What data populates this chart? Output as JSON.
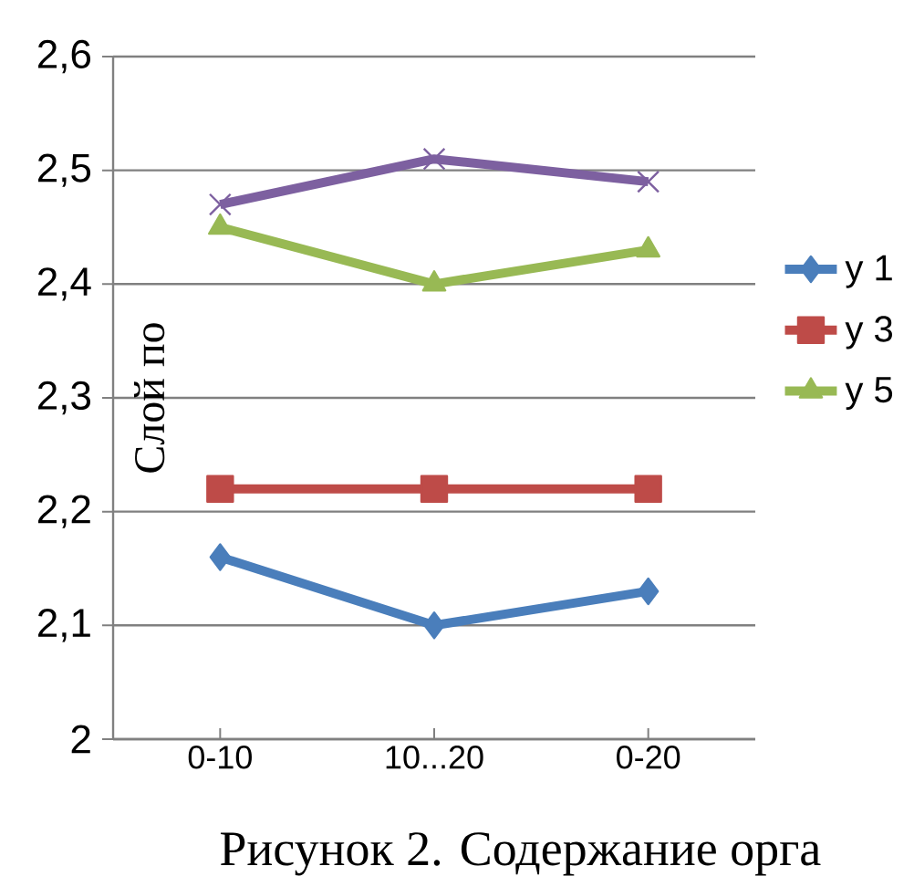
{
  "chart_data": {
    "type": "line",
    "ylabel": "Слой по",
    "categories": [
      "0-10",
      "10...20",
      "0-20"
    ],
    "series": [
      {
        "name": "у 1",
        "color": "#4a7ebb",
        "marker": "diamond",
        "values": [
          2.16,
          2.1,
          2.13
        ]
      },
      {
        "name": "у 3",
        "color": "#be4b48",
        "marker": "square",
        "values": [
          2.22,
          2.22,
          2.22
        ]
      },
      {
        "name": "у 5",
        "color": "#98b954",
        "marker": "triangle",
        "values": [
          2.45,
          2.4,
          2.43
        ]
      },
      {
        "color": "#7d60a0",
        "marker": "cross",
        "values": [
          2.47,
          2.51,
          2.49
        ]
      }
    ],
    "ylim": [
      2,
      2.6
    ],
    "yticks": [
      {
        "value": 2,
        "label": "2"
      },
      {
        "value": 2.1,
        "label": "2,1"
      },
      {
        "value": 2.2,
        "label": "2,2"
      },
      {
        "value": 2.3,
        "label": "2,3"
      },
      {
        "value": 2.4,
        "label": "2,4"
      },
      {
        "value": 2.5,
        "label": "2,5"
      },
      {
        "value": 2.6,
        "label": "2,6"
      }
    ],
    "grid": "y",
    "legend": "right",
    "line_style": "solid",
    "annotations": [
      "Рисунок 2. Содержание орга"
    ]
  }
}
